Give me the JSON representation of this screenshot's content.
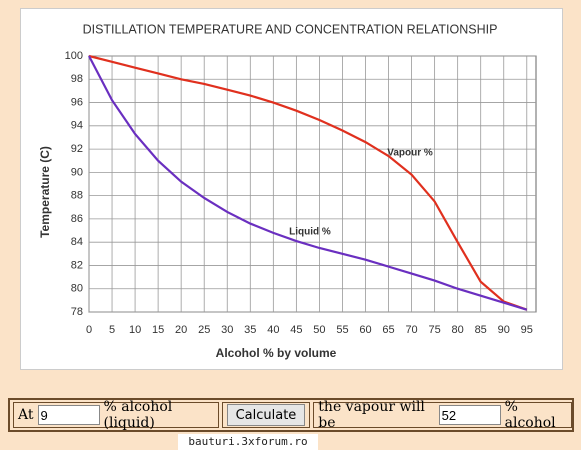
{
  "chart_data": {
    "type": "line",
    "title": "DISTILLATION TEMPERATURE AND CONCENTRATION RELATIONSHIP",
    "x_label": "Alcohol % by volume",
    "y_label": "Temperature (C)",
    "x": [
      0,
      5,
      10,
      15,
      20,
      25,
      30,
      35,
      40,
      45,
      50,
      55,
      60,
      65,
      70,
      75,
      80,
      85,
      90,
      95
    ],
    "series": [
      {
        "name": "Vapour %",
        "color": "#e0301e",
        "values": [
          100,
          99.5,
          99,
          98.5,
          98,
          97.6,
          97.1,
          96.6,
          96,
          95.3,
          94.5,
          93.6,
          92.6,
          91.4,
          89.8,
          87.5,
          84,
          80.6,
          78.9,
          78.2
        ]
      },
      {
        "name": "Liquid %",
        "color": "#6a2fc0",
        "values": [
          100,
          96.2,
          93.3,
          91,
          89.2,
          87.8,
          86.6,
          85.6,
          84.8,
          84.1,
          83.5,
          83,
          82.5,
          81.9,
          81.3,
          80.7,
          80,
          79.4,
          78.8,
          78.2
        ]
      }
    ],
    "xlim": [
      0,
      97
    ],
    "ylim": [
      78,
      100
    ],
    "xticks": [
      0,
      5,
      10,
      15,
      20,
      25,
      30,
      35,
      40,
      45,
      50,
      55,
      60,
      65,
      70,
      75,
      80,
      85,
      90,
      95
    ],
    "yticks": [
      78,
      80,
      82,
      84,
      86,
      88,
      90,
      92,
      94,
      96,
      98,
      100
    ],
    "grid": true
  },
  "form": {
    "prefix": "At",
    "liquid": "9",
    "liquid_unit": "% alcohol (liquid)",
    "button": "Calculate",
    "result_label": "the vapour will be",
    "vapour": "52",
    "vapour_unit": "% alcohol"
  },
  "footer": "bauturi.3xforum.ro"
}
